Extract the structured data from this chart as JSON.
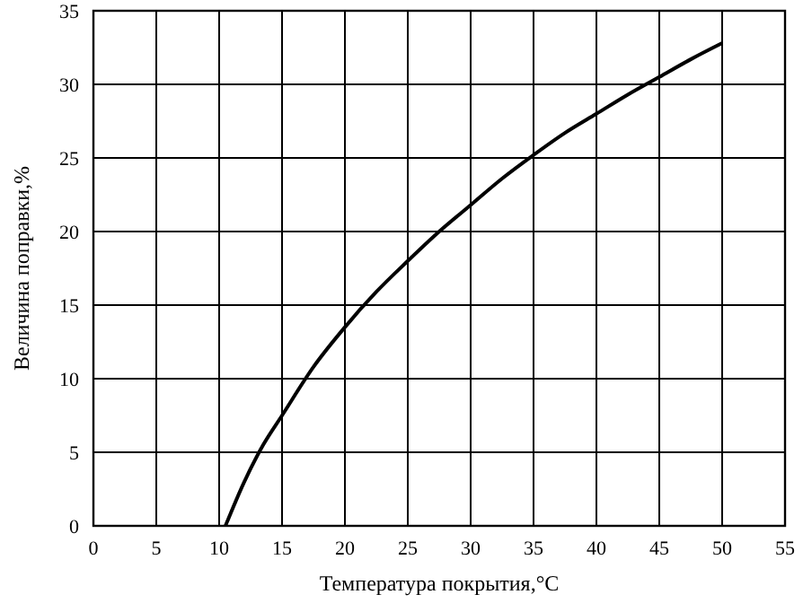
{
  "chart_data": {
    "type": "line",
    "xlabel": "Температура покрытия,°C",
    "ylabel": "Величина поправки,%",
    "x": [
      10.5,
      12,
      13.5,
      15,
      17.5,
      20,
      22.5,
      25,
      27.5,
      30,
      32.5,
      35,
      37.5,
      40,
      42.5,
      45,
      47.5,
      50
    ],
    "series": [
      {
        "color": "#000000",
        "values": [
          0,
          3,
          5.5,
          7.5,
          10.8,
          13.5,
          15.9,
          18,
          20,
          21.8,
          23.6,
          25.2,
          26.7,
          28,
          29.3,
          30.5,
          31.7,
          32.8
        ]
      }
    ],
    "xlim": [
      0,
      55
    ],
    "xticks": [
      0,
      5,
      10,
      15,
      20,
      25,
      30,
      35,
      40,
      45,
      50,
      55
    ],
    "ylim": [
      0,
      35
    ],
    "yticks": [
      0,
      5,
      10,
      15,
      20,
      25,
      30,
      35
    ],
    "grid": true,
    "marker": "none",
    "line_style": "solid"
  }
}
